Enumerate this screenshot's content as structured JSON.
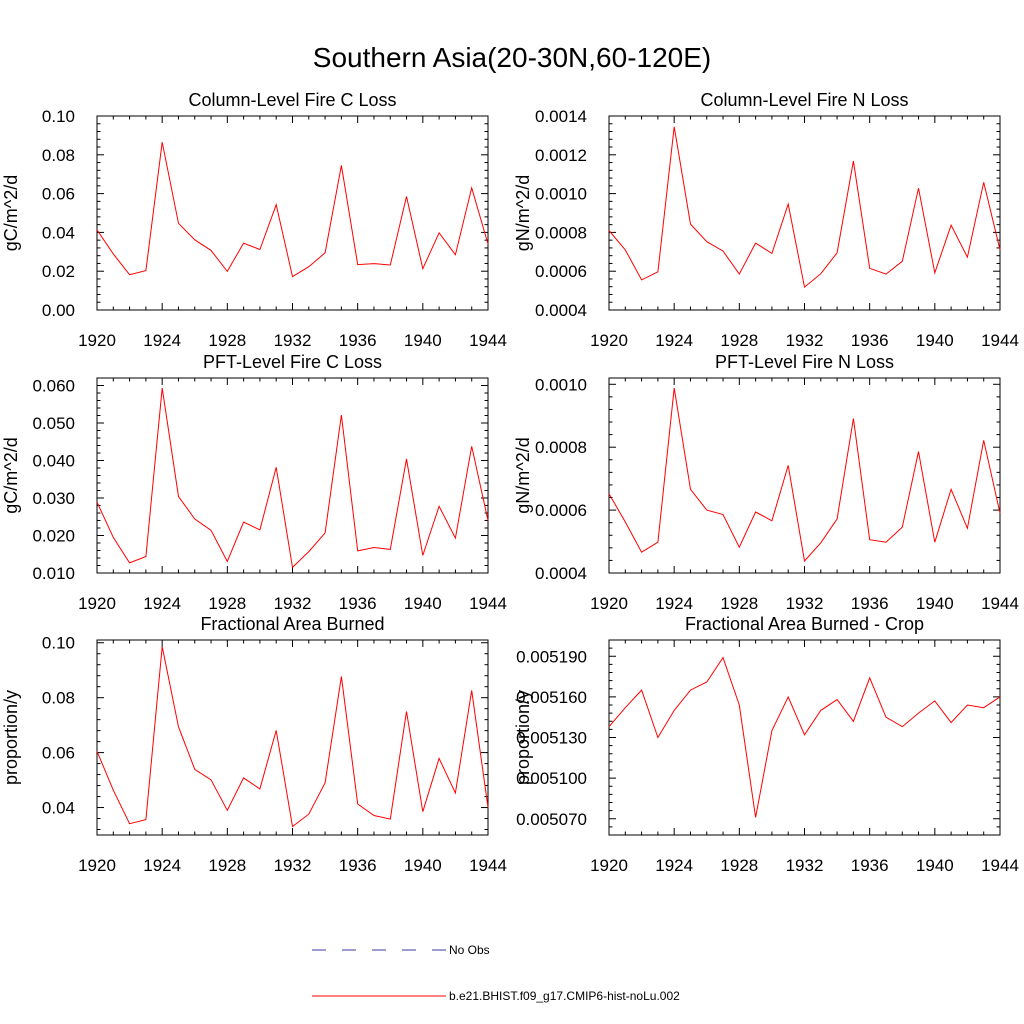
{
  "title": "Southern Asia(20-30N,60-120E)",
  "colors": {
    "series": "#ff0000",
    "obs": "#3a3aa0",
    "axis": "#000000"
  },
  "legend": {
    "obs_label": "No Obs",
    "model_label": "b.e21.BHIST.f09_g17.CMIP6-hist-noLu.002"
  },
  "chart_data": [
    {
      "type": "line",
      "title": "Column-Level Fire C Loss",
      "ylabel": "gC/m^2/d",
      "xlim": [
        1920,
        1944
      ],
      "ylim": [
        0.0,
        0.1
      ],
      "x_ticks": [
        "1920",
        "1924",
        "1928",
        "1932",
        "1936",
        "1940",
        "1944"
      ],
      "y_ticks": [
        "0.00",
        "0.02",
        "0.04",
        "0.06",
        "0.08",
        "0.10"
      ],
      "series": [
        {
          "name": "b.e21.BHIST.f09_g17.CMIP6-hist-noLu.002",
          "x": [
            1920,
            1921,
            1922,
            1923,
            1924,
            1925,
            1926,
            1927,
            1928,
            1929,
            1930,
            1931,
            1932,
            1933,
            1934,
            1935,
            1936,
            1937,
            1938,
            1939,
            1940,
            1941,
            1942,
            1943,
            1944
          ],
          "y": [
            0.0413,
            0.0289,
            0.0182,
            0.0203,
            0.0865,
            0.0447,
            0.0362,
            0.0307,
            0.0199,
            0.0345,
            0.0312,
            0.0543,
            0.0172,
            0.0223,
            0.0295,
            0.0745,
            0.0234,
            0.0239,
            0.0232,
            0.0585,
            0.0213,
            0.0398,
            0.0285,
            0.063,
            0.034
          ]
        }
      ]
    },
    {
      "type": "line",
      "title": "Column-Level Fire N Loss",
      "ylabel": "gN/m^2/d",
      "xlim": [
        1920,
        1944
      ],
      "ylim": [
        0.0004,
        0.0014
      ],
      "x_ticks": [
        "1920",
        "1924",
        "1928",
        "1932",
        "1936",
        "1940",
        "1944"
      ],
      "y_ticks": [
        "0.0004",
        "0.0006",
        "0.0008",
        "0.0010",
        "0.0012",
        "0.0014"
      ],
      "series": [
        {
          "name": "b.e21.BHIST.f09_g17.CMIP6-hist-noLu.002",
          "x": [
            1920,
            1921,
            1922,
            1923,
            1924,
            1925,
            1926,
            1927,
            1928,
            1929,
            1930,
            1931,
            1932,
            1933,
            1934,
            1935,
            1936,
            1937,
            1938,
            1939,
            1940,
            1941,
            1942,
            1943,
            1944
          ],
          "y": [
            0.00081,
            0.00071,
            0.000555,
            0.000597,
            0.001345,
            0.000843,
            0.000752,
            0.000704,
            0.000585,
            0.000745,
            0.000692,
            0.000946,
            0.000518,
            0.000587,
            0.000695,
            0.001168,
            0.000615,
            0.000585,
            0.000651,
            0.001028,
            0.000592,
            0.000837,
            0.000672,
            0.001058,
            0.00071
          ]
        }
      ]
    },
    {
      "type": "line",
      "title": "PFT-Level Fire C Loss",
      "ylabel": "gC/m^2/d",
      "xlim": [
        1920,
        1944
      ],
      "ylim": [
        0.01,
        0.062
      ],
      "x_ticks": [
        "1920",
        "1924",
        "1928",
        "1932",
        "1936",
        "1940",
        "1944"
      ],
      "y_ticks": [
        "0.010",
        "0.020",
        "0.030",
        "0.040",
        "0.050",
        "0.060"
      ],
      "series": [
        {
          "name": "b.e21.BHIST.f09_g17.CMIP6-hist-noLu.002",
          "x": [
            1920,
            1921,
            1922,
            1923,
            1924,
            1925,
            1926,
            1927,
            1928,
            1929,
            1930,
            1931,
            1932,
            1933,
            1934,
            1935,
            1936,
            1937,
            1938,
            1939,
            1940,
            1941,
            1942,
            1943,
            1944
          ],
          "y": [
            0.0289,
            0.0195,
            0.0127,
            0.0144,
            0.0593,
            0.0304,
            0.0244,
            0.0214,
            0.0131,
            0.0236,
            0.0215,
            0.0382,
            0.0115,
            0.0157,
            0.0207,
            0.0521,
            0.0159,
            0.0168,
            0.0163,
            0.0404,
            0.0147,
            0.0278,
            0.0193,
            0.0438,
            0.024
          ]
        }
      ]
    },
    {
      "type": "line",
      "title": "PFT-Level Fire N Loss",
      "ylabel": "gN/m^2/d",
      "xlim": [
        1920,
        1944
      ],
      "ylim": [
        0.0004,
        0.00102
      ],
      "x_ticks": [
        "1920",
        "1924",
        "1928",
        "1932",
        "1936",
        "1940",
        "1944"
      ],
      "y_ticks": [
        "0.0004",
        "0.0006",
        "0.0008",
        "0.0010"
      ],
      "series": [
        {
          "name": "b.e21.BHIST.f09_g17.CMIP6-hist-noLu.002",
          "x": [
            1920,
            1921,
            1922,
            1923,
            1924,
            1925,
            1926,
            1927,
            1928,
            1929,
            1930,
            1931,
            1932,
            1933,
            1934,
            1935,
            1936,
            1937,
            1938,
            1939,
            1940,
            1941,
            1942,
            1943,
            1944
          ],
          "y": [
            0.000652,
            0.000562,
            0.000466,
            0.000498,
            0.000988,
            0.000666,
            0.0006,
            0.000586,
            0.000482,
            0.000594,
            0.000566,
            0.000742,
            0.000438,
            0.000496,
            0.000572,
            0.000891,
            0.000506,
            0.000498,
            0.000546,
            0.000786,
            0.000498,
            0.000666,
            0.000542,
            0.000822,
            0.00059
          ]
        }
      ]
    },
    {
      "type": "line",
      "title": "Fractional Area Burned",
      "ylabel": "proportion/y",
      "xlim": [
        1920,
        1944
      ],
      "ylim": [
        0.03,
        0.101
      ],
      "x_ticks": [
        "1920",
        "1924",
        "1928",
        "1932",
        "1936",
        "1940",
        "1944"
      ],
      "y_ticks": [
        "0.04",
        "0.06",
        "0.08",
        "0.10"
      ],
      "series": [
        {
          "name": "b.e21.BHIST.f09_g17.CMIP6-hist-noLu.002",
          "x": [
            1920,
            1921,
            1922,
            1923,
            1924,
            1925,
            1926,
            1927,
            1928,
            1929,
            1930,
            1931,
            1932,
            1933,
            1934,
            1935,
            1936,
            1937,
            1938,
            1939,
            1940,
            1941,
            1942,
            1943,
            1944
          ],
          "y": [
            0.0605,
            0.0463,
            0.0341,
            0.0356,
            0.0986,
            0.0694,
            0.0539,
            0.0501,
            0.039,
            0.0508,
            0.0468,
            0.0681,
            0.0331,
            0.0376,
            0.049,
            0.0877,
            0.0413,
            0.0371,
            0.0358,
            0.075,
            0.0385,
            0.0579,
            0.0453,
            0.0826,
            0.04
          ]
        }
      ]
    },
    {
      "type": "line",
      "title": "Fractional Area Burned - Crop",
      "ylabel": "proportion/y",
      "xlim": [
        1920,
        1944
      ],
      "ylim": [
        0.005058,
        0.005202
      ],
      "x_ticks": [
        "1920",
        "1924",
        "1928",
        "1932",
        "1936",
        "1940",
        "1944"
      ],
      "y_ticks": [
        "0.005070",
        "0.005100",
        "0.005130",
        "0.005160",
        "0.005190"
      ],
      "series": [
        {
          "name": "b.e21.BHIST.f09_g17.CMIP6-hist-noLu.002",
          "x": [
            1920,
            1921,
            1922,
            1923,
            1924,
            1925,
            1926,
            1927,
            1928,
            1929,
            1930,
            1931,
            1932,
            1933,
            1934,
            1935,
            1936,
            1937,
            1938,
            1939,
            1940,
            1941,
            1942,
            1943,
            1944
          ],
          "y": [
            0.005138,
            0.005152,
            0.005165,
            0.00513,
            0.00515,
            0.005165,
            0.005171,
            0.005189,
            0.005154,
            0.005071,
            0.005135,
            0.00516,
            0.005132,
            0.00515,
            0.005158,
            0.005142,
            0.005174,
            0.005145,
            0.005138,
            0.005148,
            0.005157,
            0.005141,
            0.005154,
            0.005152,
            0.00516
          ]
        }
      ]
    }
  ]
}
